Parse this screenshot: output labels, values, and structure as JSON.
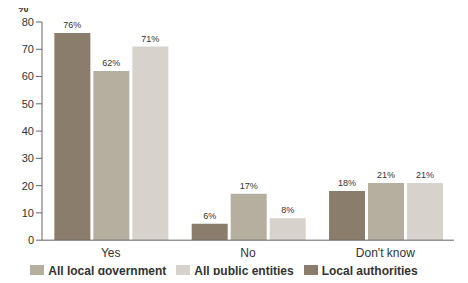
{
  "chart_data": {
    "type": "bar",
    "categories": [
      "Yes",
      "No",
      "Don't know"
    ],
    "y_label": "%",
    "ylim": [
      0,
      80
    ],
    "yticks": [
      0,
      10,
      20,
      30,
      40,
      50,
      60,
      70,
      80
    ],
    "grid": false,
    "legend": "bottom",
    "data_labels": true,
    "series": [
      {
        "name": "Local authorities",
        "color": "#8a7d6b",
        "values": [
          76,
          6,
          18
        ],
        "value_labels": [
          "76%",
          "6%",
          "18%"
        ]
      },
      {
        "name": "All local government",
        "color": "#b6ae9f",
        "values": [
          62,
          17,
          21
        ],
        "value_labels": [
          "62%",
          "17%",
          "21%"
        ]
      },
      {
        "name": "All public entities",
        "color": "#d7d3cc",
        "values": [
          71,
          8,
          21
        ],
        "value_labels": [
          "71%",
          "8%",
          "21%"
        ]
      }
    ]
  }
}
